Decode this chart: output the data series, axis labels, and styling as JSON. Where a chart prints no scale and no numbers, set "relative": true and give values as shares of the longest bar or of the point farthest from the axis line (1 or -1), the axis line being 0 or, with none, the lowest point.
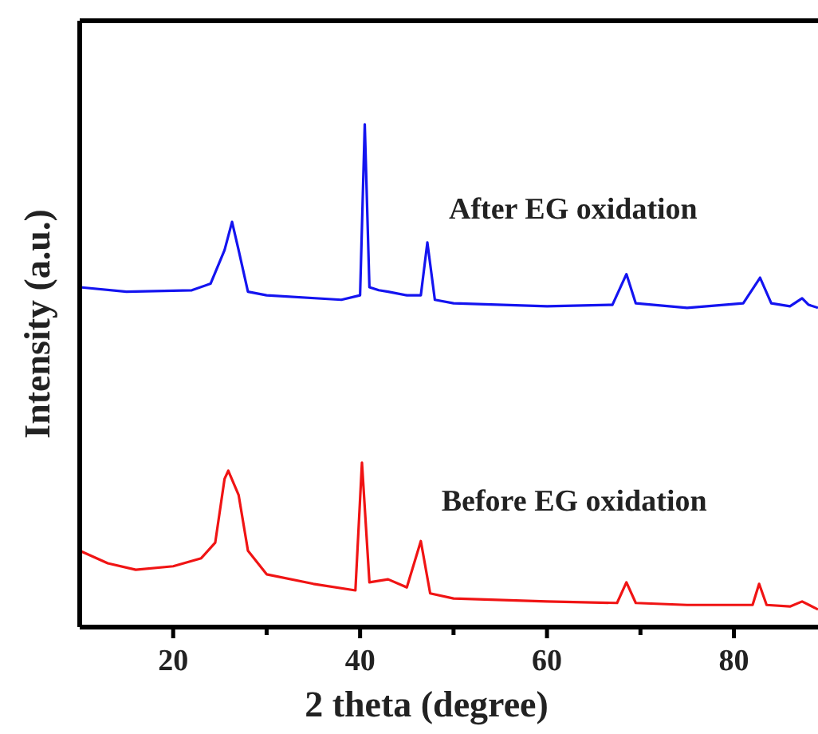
{
  "chart_data": {
    "type": "line",
    "relative": true,
    "xlabel": "2 theta (degree)",
    "ylabel": "Intensity (a.u.)",
    "xlim": [
      10,
      89
    ],
    "xticks": [
      20,
      {
        "value": 30,
        "label": null
      },
      40,
      {
        "value": 50,
        "label": null
      },
      60,
      {
        "value": 70,
        "label": null
      },
      80
    ],
    "legend": false,
    "grid": false,
    "marker": "none",
    "line_style": "solid",
    "series": [
      {
        "name": "After EG oxidation",
        "color": "#1414f0",
        "x": [
          10,
          15,
          22,
          24,
          25.5,
          26.3,
          27,
          28,
          30,
          38,
          40,
          40.5,
          41,
          42,
          43,
          45,
          46.5,
          47.2,
          48,
          50,
          60,
          67,
          68.5,
          69.5,
          75,
          81,
          82.8,
          84,
          86,
          87.3,
          88,
          89
        ],
        "values": [
          0.676,
          0.667,
          0.67,
          0.683,
          0.75,
          0.806,
          0.75,
          0.667,
          0.66,
          0.651,
          0.66,
          1.0,
          0.676,
          0.67,
          0.667,
          0.66,
          0.66,
          0.765,
          0.651,
          0.644,
          0.638,
          0.641,
          0.702,
          0.644,
          0.635,
          0.644,
          0.695,
          0.644,
          0.638,
          0.654,
          0.641,
          0.635
        ]
      },
      {
        "name": "Before EG oxidation",
        "color": "#f01414",
        "x": [
          10,
          13,
          16,
          20,
          23,
          24.5,
          25.5,
          25.9,
          27,
          28,
          30,
          35,
          39.5,
          40.2,
          41,
          43,
          45,
          46.5,
          47.5,
          50,
          60,
          67.5,
          68.5,
          69.5,
          75,
          82,
          82.7,
          83.5,
          86,
          87.3,
          89
        ],
        "values": [
          0.152,
          0.127,
          0.114,
          0.121,
          0.137,
          0.168,
          0.295,
          0.311,
          0.263,
          0.152,
          0.105,
          0.086,
          0.073,
          0.327,
          0.089,
          0.095,
          0.079,
          0.171,
          0.067,
          0.057,
          0.051,
          0.048,
          0.089,
          0.048,
          0.044,
          0.044,
          0.086,
          0.044,
          0.041,
          0.051,
          0.035
        ]
      }
    ]
  }
}
